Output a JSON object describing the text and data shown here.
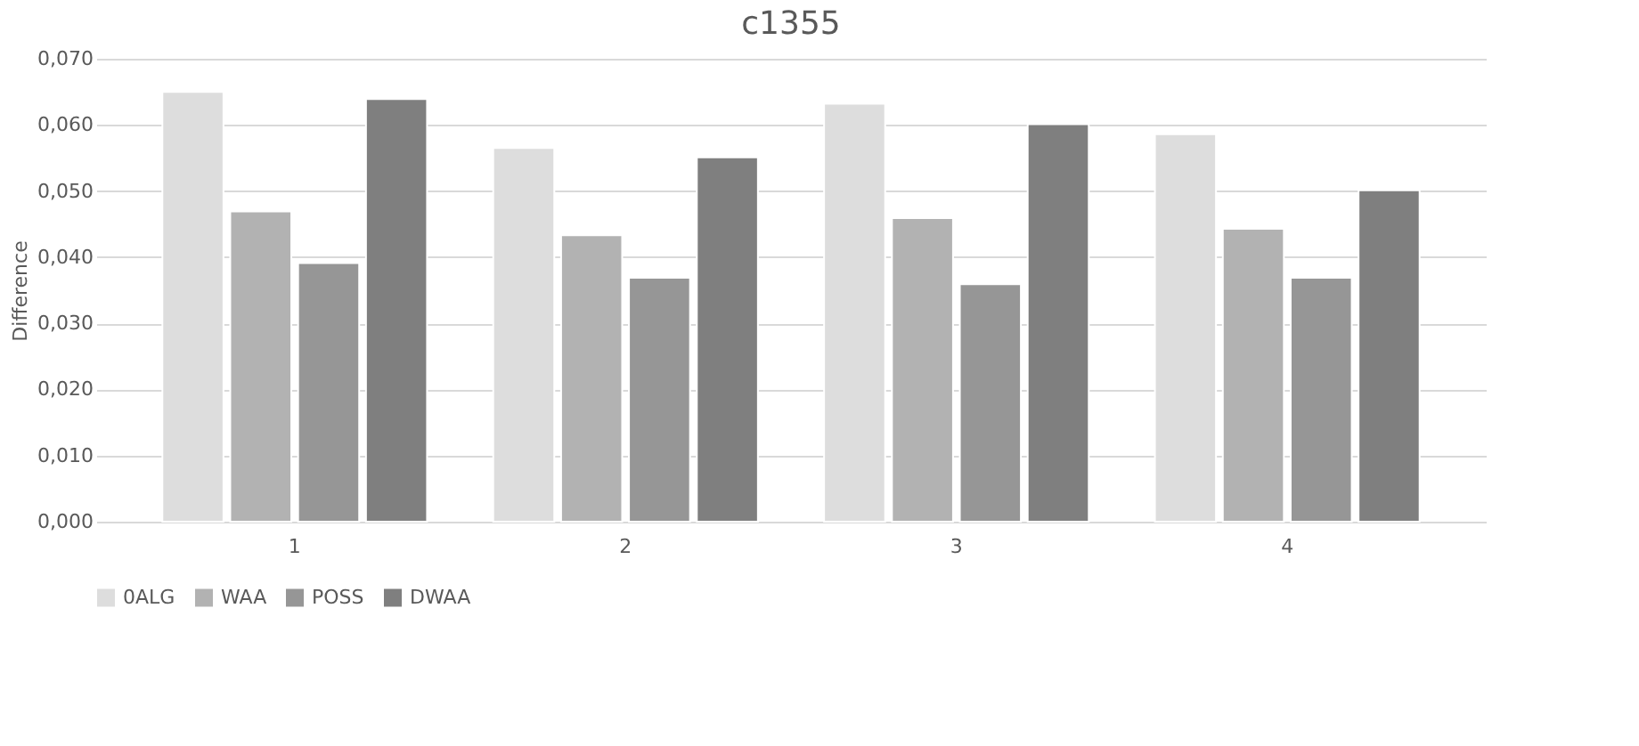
{
  "chart_data": {
    "type": "bar",
    "title": "c1355",
    "ylabel": "Difference",
    "categories": [
      "1",
      "2",
      "3",
      "4"
    ],
    "series": [
      {
        "name": "0ALG",
        "color": "#dddddd",
        "values": [
          0.065,
          0.0565,
          0.0632,
          0.0586
        ]
      },
      {
        "name": "WAA",
        "color": "#b2b2b2",
        "values": [
          0.0469,
          0.0433,
          0.0459,
          0.0443
        ]
      },
      {
        "name": "POSS",
        "color": "#969696",
        "values": [
          0.0391,
          0.0369,
          0.0359,
          0.0369
        ]
      },
      {
        "name": "DWAA",
        "color": "#7f7f7f",
        "values": [
          0.0639,
          0.0551,
          0.0601,
          0.0501
        ]
      }
    ],
    "ylim": [
      0,
      0.07
    ],
    "yticks": [
      {
        "value": 0,
        "label": "0,000"
      },
      {
        "value": 0.01,
        "label": "0,010"
      },
      {
        "value": 0.02,
        "label": "0,020"
      },
      {
        "value": 0.03,
        "label": "0,030"
      },
      {
        "value": 0.04,
        "label": "0,040"
      },
      {
        "value": 0.05,
        "label": "0,050"
      },
      {
        "value": 0.06,
        "label": "0,060"
      },
      {
        "value": 0.07,
        "label": "0,070"
      }
    ],
    "grid": "y",
    "legend": "bottom"
  }
}
